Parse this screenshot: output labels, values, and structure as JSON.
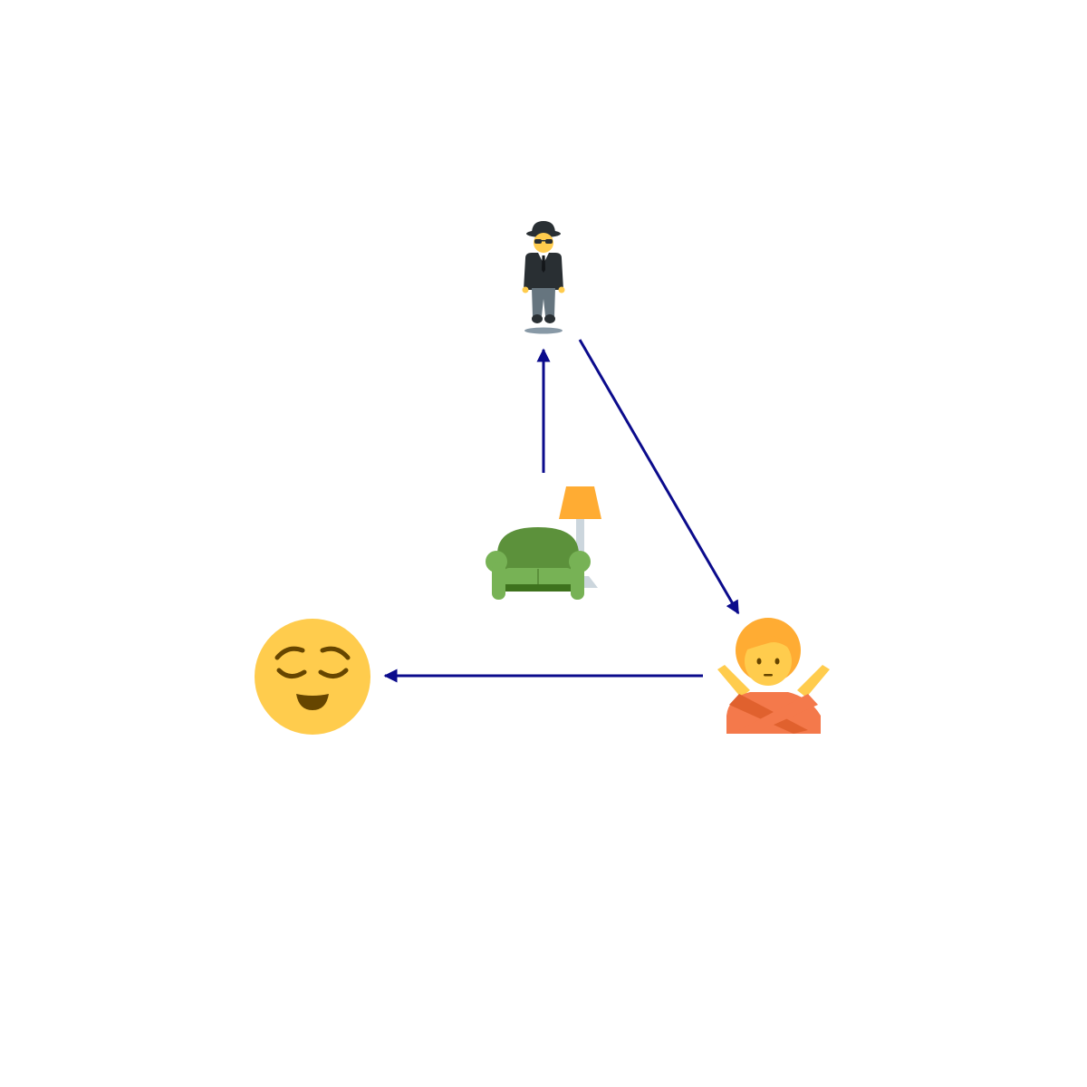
{
  "diagram": {
    "type": "emoji-flow",
    "nodes": [
      {
        "id": "couch",
        "icon": "couch-and-lamp-icon"
      },
      {
        "id": "levitating-man",
        "icon": "levitating-man-in-suit-icon"
      },
      {
        "id": "no-gesture",
        "icon": "person-gesturing-no-icon"
      },
      {
        "id": "relieved",
        "icon": "relieved-face-icon"
      }
    ],
    "edges": [
      {
        "from": "couch",
        "to": "levitating-man"
      },
      {
        "from": "levitating-man",
        "to": "no-gesture"
      },
      {
        "from": "no-gesture",
        "to": "relieved"
      }
    ],
    "colors": {
      "arrow": "#0b0b8c",
      "face_yellow": "#ffcc4d",
      "face_features": "#664500",
      "hair_orange": "#ffac33",
      "shirt_orange": "#f4794b",
      "shirt_dark": "#e0612e",
      "couch_green": "#5c913b",
      "couch_light": "#77b255",
      "lamp_shade": "#ffac33",
      "lamp_pole": "#ccd6dd",
      "suit_black": "#292f33",
      "pants_gray": "#66757f"
    }
  }
}
